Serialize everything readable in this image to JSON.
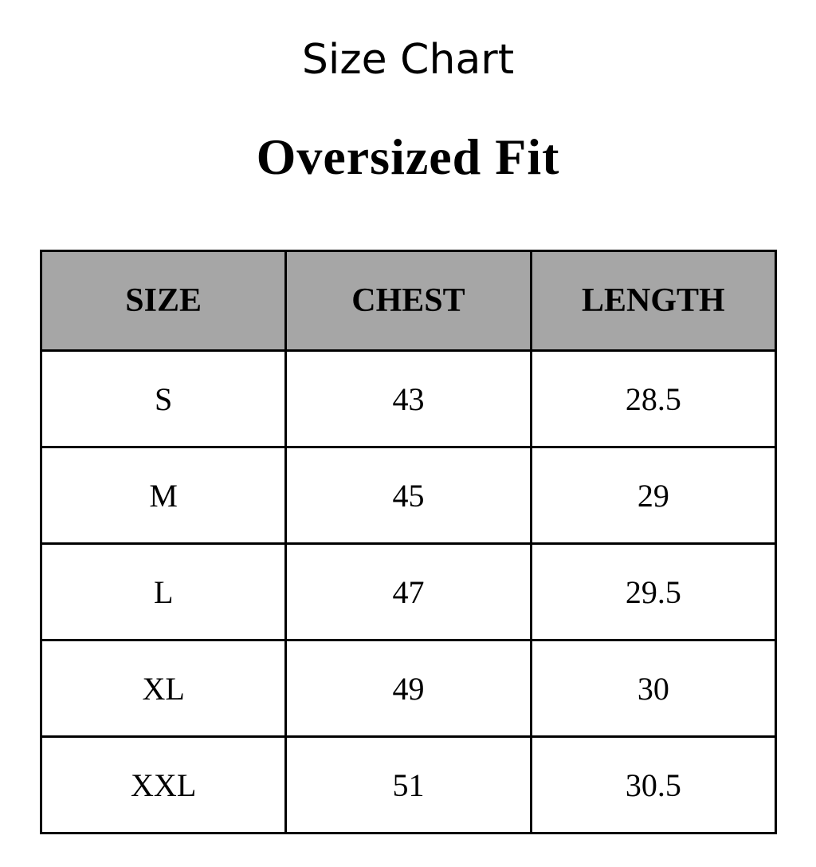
{
  "title": "Size Chart",
  "subtitle": "Oversized Fit",
  "colors": {
    "header_bg": "#a6a6a6",
    "border": "#000000"
  },
  "table": {
    "headers": [
      "SIZE",
      "CHEST",
      "LENGTH"
    ],
    "rows": [
      [
        "S",
        "43",
        "28.5"
      ],
      [
        "M",
        "45",
        "29"
      ],
      [
        "L",
        "47",
        "29.5"
      ],
      [
        "XL",
        "49",
        "30"
      ],
      [
        "XXL",
        "51",
        "30.5"
      ]
    ]
  }
}
